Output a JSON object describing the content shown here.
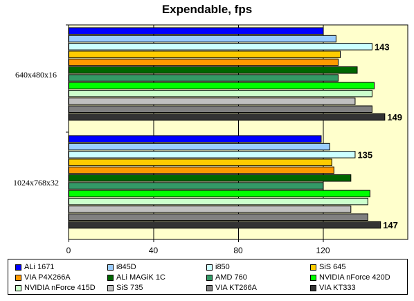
{
  "chart_data": {
    "type": "bar",
    "orientation": "horizontal",
    "title": "Expendable, fps",
    "xlim": [
      0,
      160
    ],
    "xticks": [
      0,
      40,
      80,
      120
    ],
    "grid": true,
    "legend_position": "bottom",
    "categories": [
      "640x480x16",
      "1024x768x32"
    ],
    "series": [
      {
        "name": "ALi 1671",
        "color": "#0000ff",
        "values": [
          120,
          119
        ]
      },
      {
        "name": "i845D",
        "color": "#99ccff",
        "values": [
          126,
          123
        ]
      },
      {
        "name": "i850",
        "color": "#ccffff",
        "values": [
          143,
          135
        ]
      },
      {
        "name": "SiS 645",
        "color": "#ffcc00",
        "values": [
          128,
          124
        ]
      },
      {
        "name": "VIA P4X266A",
        "color": "#ff9900",
        "values": [
          127,
          125
        ]
      },
      {
        "name": "ALi MAGiK 1C",
        "color": "#006600",
        "values": [
          136,
          133
        ]
      },
      {
        "name": "AMD 760",
        "color": "#339966",
        "values": [
          127,
          120
        ]
      },
      {
        "name": "NVIDIA nForce 420D",
        "color": "#00ff00",
        "values": [
          144,
          142
        ]
      },
      {
        "name": "NVIDIA nForce 415D",
        "color": "#ccffcc",
        "values": [
          143,
          141
        ]
      },
      {
        "name": "SiS 735",
        "color": "#c0c0c0",
        "values": [
          135,
          133
        ]
      },
      {
        "name": "VIA KT266A",
        "color": "#808080",
        "values": [
          143,
          141
        ]
      },
      {
        "name": "VIA KT333",
        "color": "#333333",
        "values": [
          149,
          147
        ]
      }
    ],
    "data_labels": [
      {
        "category": "640x480x16",
        "series": "i850",
        "text": "143"
      },
      {
        "category": "640x480x16",
        "series": "VIA KT333",
        "text": "149"
      },
      {
        "category": "1024x768x32",
        "series": "i850",
        "text": "135"
      },
      {
        "category": "1024x768x32",
        "series": "VIA KT333",
        "text": "147"
      }
    ],
    "colors": {
      "plot_background": "#ffffcc",
      "gridline": "#000000"
    }
  }
}
